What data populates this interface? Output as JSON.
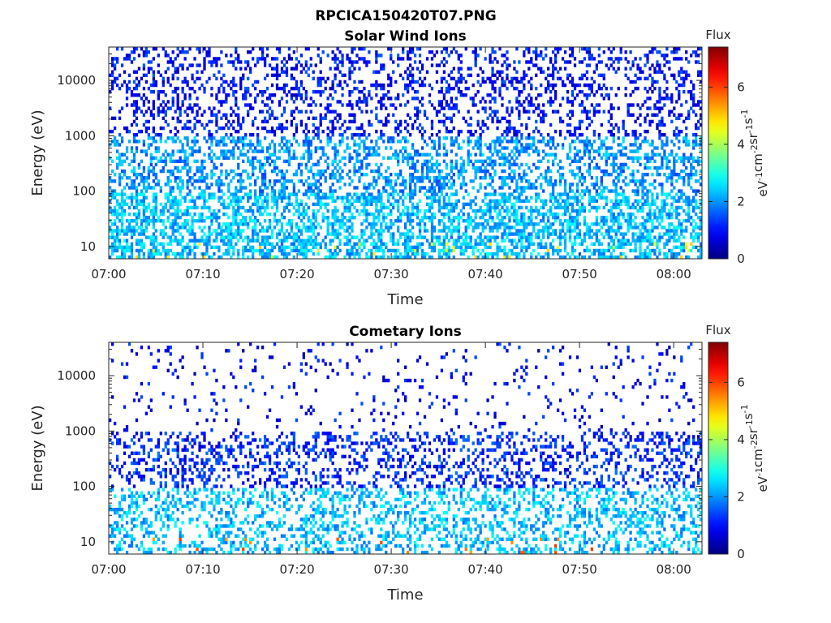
{
  "figure_title": "RPCICA150420T07.PNG",
  "chart_data": [
    {
      "type": "heatmap",
      "title": "Solar Wind Ions",
      "xlabel": "Time",
      "ylabel": "Energy (eV)",
      "x_ticks": [
        "07:00",
        "07:10",
        "07:20",
        "07:30",
        "07:40",
        "07:50",
        "08:00"
      ],
      "x_range": [
        "07:00",
        "08:03"
      ],
      "y_scale": "log",
      "y_ticks": [
        10,
        100,
        1000,
        10000
      ],
      "y_tick_labels": [
        "10",
        "100",
        "1000",
        "10000"
      ],
      "ylim": [
        6,
        40000
      ],
      "colorbar": {
        "title": "Flux",
        "label": "eV-1cm-2sr-1s-1",
        "ticks": [
          0,
          2,
          4,
          6
        ],
        "range": [
          0,
          7.4
        ],
        "colormap": "jet"
      },
      "density": {
        "low_energy_band": 0.55,
        "mid_band": 0.4,
        "high_band": 0.28
      },
      "typical_flux": {
        "below_100eV": 2.3,
        "100_to_1000eV": 2.0,
        "above_1000eV": 1.0
      },
      "peak_flux": 5.0
    },
    {
      "type": "heatmap",
      "title": "Cometary Ions",
      "xlabel": "Time",
      "ylabel": "Energy (eV)",
      "x_ticks": [
        "07:00",
        "07:10",
        "07:20",
        "07:30",
        "07:40",
        "07:50",
        "08:00"
      ],
      "x_range": [
        "07:00",
        "08:03"
      ],
      "y_scale": "log",
      "y_ticks": [
        10,
        100,
        1000,
        10000
      ],
      "y_tick_labels": [
        "10",
        "100",
        "1000",
        "10000"
      ],
      "ylim": [
        6,
        40000
      ],
      "colorbar": {
        "title": "Flux",
        "label": "eV-1cm-2sr-1s-1",
        "ticks": [
          0,
          2,
          4,
          6
        ],
        "range": [
          0,
          7.4
        ],
        "colormap": "jet"
      },
      "density": {
        "low_energy_band": 0.35,
        "mid_band": 0.3,
        "high_band": 0.06
      },
      "typical_flux": {
        "below_100eV": 2.3,
        "100_to_1000eV": 1.2,
        "above_1000eV": 0.9
      },
      "peak_flux": 6.2
    }
  ]
}
